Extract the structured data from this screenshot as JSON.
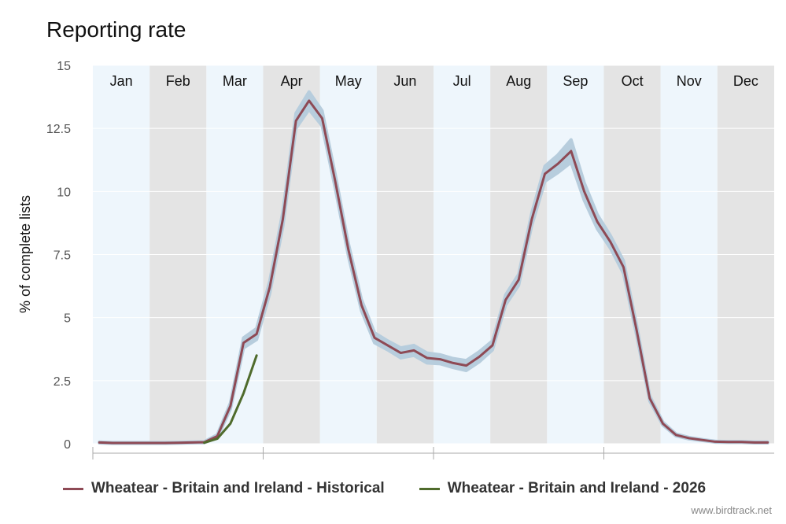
{
  "title": "Reporting rate",
  "credit": "www.birdtrack.net",
  "colors": {
    "historical": "#8e4a55",
    "current": "#4f6b2c",
    "confidence_band": "#b7cddd",
    "month_light": "#eef6fc",
    "month_dark": "#e4e4e4",
    "grid": "#ffffff"
  },
  "chart_data": {
    "type": "line",
    "title": "Reporting rate",
    "xlabel": "",
    "ylabel": "% of complete lists",
    "ylim": [
      0,
      15
    ],
    "y_ticks": [
      "0",
      "2.5",
      "5",
      "7.5",
      "10",
      "12.5",
      "15"
    ],
    "y_tick_values": [
      0,
      2.5,
      5,
      7.5,
      10,
      12.5,
      15
    ],
    "months": [
      "Jan",
      "Feb",
      "Mar",
      "Apr",
      "May",
      "Jun",
      "Jul",
      "Aug",
      "Sep",
      "Oct",
      "Nov",
      "Dec"
    ],
    "x_unit": "week of year",
    "xlim": [
      1,
      52
    ],
    "legend_position": "bottom",
    "series": [
      {
        "name": "Wheatear - Britain and Ireland - Historical",
        "color": "#8e4a55",
        "x": [
          1,
          2,
          3,
          4,
          5,
          6,
          7,
          8,
          9,
          10,
          11,
          12,
          13,
          14,
          15,
          16,
          17,
          18,
          19,
          20,
          21,
          22,
          23,
          24,
          25,
          26,
          27,
          28,
          29,
          30,
          31,
          32,
          33,
          34,
          35,
          36,
          37,
          38,
          39,
          40,
          41,
          42,
          43,
          44,
          45,
          46,
          47,
          48,
          49,
          50,
          51,
          52
        ],
        "y": [
          0.05,
          0.03,
          0.03,
          0.03,
          0.03,
          0.03,
          0.04,
          0.05,
          0.06,
          0.3,
          1.5,
          4.0,
          4.35,
          6.2,
          8.9,
          12.8,
          13.6,
          12.9,
          10.4,
          7.7,
          5.5,
          4.2,
          3.9,
          3.6,
          3.7,
          3.4,
          3.35,
          3.2,
          3.1,
          3.45,
          3.9,
          5.7,
          6.5,
          8.9,
          10.7,
          11.1,
          11.6,
          10.0,
          8.8,
          8.0,
          7.0,
          4.5,
          1.8,
          0.8,
          0.35,
          0.22,
          0.15,
          0.08,
          0.07,
          0.07,
          0.05,
          0.05
        ],
        "band_halfwidth": [
          0.02,
          0.02,
          0.02,
          0.02,
          0.02,
          0.02,
          0.02,
          0.02,
          0.02,
          0.06,
          0.12,
          0.2,
          0.22,
          0.25,
          0.3,
          0.3,
          0.35,
          0.3,
          0.28,
          0.25,
          0.22,
          0.2,
          0.18,
          0.2,
          0.2,
          0.2,
          0.18,
          0.18,
          0.2,
          0.2,
          0.18,
          0.2,
          0.22,
          0.25,
          0.3,
          0.35,
          0.45,
          0.35,
          0.28,
          0.25,
          0.25,
          0.2,
          0.1,
          0.06,
          0.04,
          0.03,
          0.02,
          0.02,
          0.02,
          0.02,
          0.02,
          0.02
        ]
      },
      {
        "name": "Wheatear - Britain and Ireland - 2026",
        "color": "#4f6b2c",
        "x": [
          9,
          10,
          11,
          12,
          13
        ],
        "y": [
          0.04,
          0.2,
          0.8,
          2.0,
          3.5
        ]
      }
    ]
  }
}
